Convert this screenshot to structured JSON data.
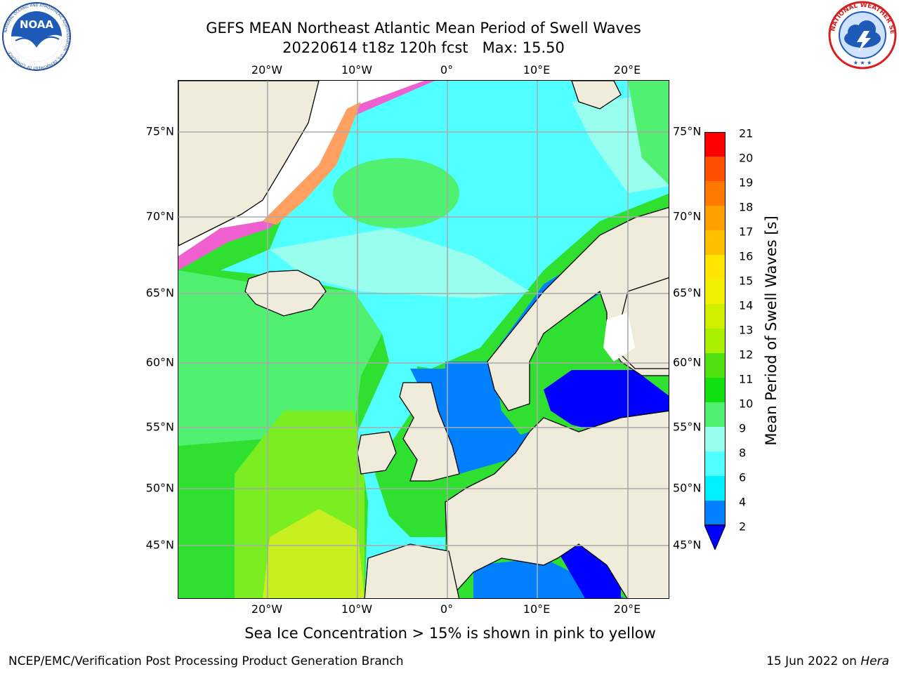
{
  "title": {
    "line1": "GEFS MEAN Northeast Atlantic Mean Period of Swell Waves",
    "line2": "20220614 t18z 120h fcst   Max: 15.50"
  },
  "logos": {
    "noaa": {
      "text": "NOAA",
      "ring_text": "NATIONAL OCEANIC AND ATMOSPHERIC ADMINISTRATION · U.S. DEPARTMENT OF COMMERCE"
    },
    "nws": {
      "ring_text": "NATIONAL WEATHER SERVICE"
    }
  },
  "map": {
    "lon_labels": [
      "20°W",
      "10°W",
      "0°",
      "10°E",
      "20°E"
    ],
    "lat_labels": [
      "75°N",
      "70°N",
      "65°N",
      "60°N",
      "55°N",
      "50°N",
      "45°N"
    ],
    "colors": {
      "land": "#efecdc",
      "ice_free_white": "#ffffff",
      "grid": "#aaaaaa"
    }
  },
  "colorbar": {
    "title": "Mean Period of Swell Waves [s]",
    "labels": [
      "21",
      "20",
      "19",
      "18",
      "17",
      "16",
      "15",
      "14",
      "13",
      "12",
      "11",
      "10",
      "9",
      "8",
      "6",
      "4",
      "2"
    ],
    "colors": [
      "#ff0000",
      "#ff2a00",
      "#ff5000",
      "#ff7800",
      "#ffa000",
      "#ffc000",
      "#ffe600",
      "#f0f000",
      "#d0f000",
      "#a8f000",
      "#50e010",
      "#10e010",
      "#50f070",
      "#98ffee",
      "#50ffff",
      "#00f0ff",
      "#0080ff",
      "#0000ff"
    ]
  },
  "caption": "Sea Ice Concentration > 15% is shown in pink to yellow",
  "footer": {
    "left": "NCEP/EMC/Verification Post Processing Product Generation Branch",
    "right_date": "15 Jun 2022 on",
    "right_machine": "Hera"
  }
}
